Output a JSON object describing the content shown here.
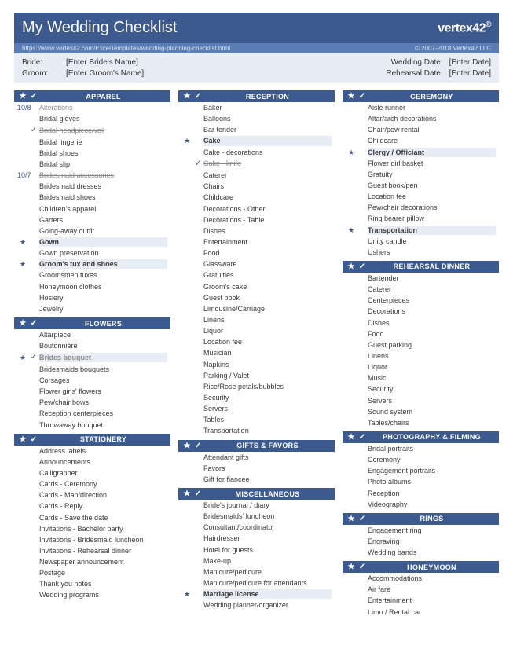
{
  "colors": {
    "primary": "#3c5a8e",
    "secondary": "#5b7db5",
    "highlight": "#e8edf5"
  },
  "header": {
    "title": "My Wedding Checklist",
    "brand": "vertex42",
    "url": "https://www.vertex42.com/ExcelTemplates/wedding-planning-checklist.html",
    "copyright": "© 2007-2018 Vertex42 LLC"
  },
  "info": {
    "bride_label": "Bride:",
    "bride_value": "[Enter Bride's Name]",
    "groom_label": "Groom:",
    "groom_value": "[Enter Groom's Name]",
    "wedding_label": "Wedding Date:",
    "wedding_value": "[Enter Date]",
    "rehearsal_label": "Rehearsal Date:",
    "rehearsal_value": "[Enter Date]"
  },
  "columns": [
    [
      {
        "title": "APPAREL",
        "items": [
          {
            "m1": "10/8",
            "m2": "",
            "t": "Alterations",
            "d": true
          },
          {
            "m1": "",
            "m2": "",
            "t": "Bridal gloves"
          },
          {
            "m1": "",
            "m2": "✓",
            "t": "Bridal headpiece/veil",
            "d": true
          },
          {
            "m1": "",
            "m2": "",
            "t": "Bridal lingerie"
          },
          {
            "m1": "",
            "m2": "",
            "t": "Bridal shoes"
          },
          {
            "m1": "",
            "m2": "",
            "t": "Bridal slip"
          },
          {
            "m1": "10/7",
            "m2": "",
            "t": "Bridesmaid accessories",
            "d": true
          },
          {
            "m1": "",
            "m2": "",
            "t": "Bridesmaid dresses"
          },
          {
            "m1": "",
            "m2": "",
            "t": "Bridesmaid shoes"
          },
          {
            "m1": "",
            "m2": "",
            "t": "Children's apparel"
          },
          {
            "m1": "",
            "m2": "",
            "t": "Garters"
          },
          {
            "m1": "",
            "m2": "",
            "t": "Going-away outfit"
          },
          {
            "m1": "★",
            "m2": "",
            "t": "Gown",
            "s": true
          },
          {
            "m1": "",
            "m2": "",
            "t": "Gown preservation"
          },
          {
            "m1": "★",
            "m2": "",
            "t": "Groom's tux and shoes",
            "s": true
          },
          {
            "m1": "",
            "m2": "",
            "t": "Groomsmen tuxes"
          },
          {
            "m1": "",
            "m2": "",
            "t": "Honeymoon clothes"
          },
          {
            "m1": "",
            "m2": "",
            "t": "Hosiery"
          },
          {
            "m1": "",
            "m2": "",
            "t": "Jewelry"
          }
        ]
      },
      {
        "title": "FLOWERS",
        "items": [
          {
            "m1": "",
            "m2": "",
            "t": "Altarpiece"
          },
          {
            "m1": "",
            "m2": "",
            "t": "Boutonnière"
          },
          {
            "m1": "★",
            "m2": "✓",
            "t": "Brides bouquet",
            "s": true,
            "d": true
          },
          {
            "m1": "",
            "m2": "",
            "t": "Bridesmaids bouquets"
          },
          {
            "m1": "",
            "m2": "",
            "t": "Corsages"
          },
          {
            "m1": "",
            "m2": "",
            "t": "Flower girls' flowers"
          },
          {
            "m1": "",
            "m2": "",
            "t": "Pew/chair bows"
          },
          {
            "m1": "",
            "m2": "",
            "t": "Reception centerpieces"
          },
          {
            "m1": "",
            "m2": "",
            "t": "Throwaway bouquet"
          }
        ]
      },
      {
        "title": "STATIONERY",
        "items": [
          {
            "m1": "",
            "m2": "",
            "t": "Address labels"
          },
          {
            "m1": "",
            "m2": "",
            "t": "Announcements"
          },
          {
            "m1": "",
            "m2": "",
            "t": "Calligrapher"
          },
          {
            "m1": "",
            "m2": "",
            "t": "Cards - Ceremony"
          },
          {
            "m1": "",
            "m2": "",
            "t": "Cards - Map/direction"
          },
          {
            "m1": "",
            "m2": "",
            "t": "Cards - Reply"
          },
          {
            "m1": "",
            "m2": "",
            "t": "Cards - Save the date"
          },
          {
            "m1": "",
            "m2": "",
            "t": "Invitations - Bachelor party"
          },
          {
            "m1": "",
            "m2": "",
            "t": "Invitations - Bridesmaid luncheon"
          },
          {
            "m1": "",
            "m2": "",
            "t": "Invitations - Rehearsal dinner"
          },
          {
            "m1": "",
            "m2": "",
            "t": "Newspaper announcement"
          },
          {
            "m1": "",
            "m2": "",
            "t": "Postage"
          },
          {
            "m1": "",
            "m2": "",
            "t": "Thank you notes"
          },
          {
            "m1": "",
            "m2": "",
            "t": "Wedding programs"
          }
        ]
      }
    ],
    [
      {
        "title": "RECEPTION",
        "items": [
          {
            "m1": "",
            "m2": "",
            "t": "Baker"
          },
          {
            "m1": "",
            "m2": "",
            "t": "Balloons"
          },
          {
            "m1": "",
            "m2": "",
            "t": "Bar tender"
          },
          {
            "m1": "★",
            "m2": "",
            "t": "Cake",
            "s": true
          },
          {
            "m1": "",
            "m2": "",
            "t": "Cake - decorations"
          },
          {
            "m1": "",
            "m2": "✓",
            "t": "Cake - knife",
            "d": true
          },
          {
            "m1": "",
            "m2": "",
            "t": "Caterer"
          },
          {
            "m1": "",
            "m2": "",
            "t": "Chairs"
          },
          {
            "m1": "",
            "m2": "",
            "t": "Childcare"
          },
          {
            "m1": "",
            "m2": "",
            "t": "Decorations - Other"
          },
          {
            "m1": "",
            "m2": "",
            "t": "Decorations - Table"
          },
          {
            "m1": "",
            "m2": "",
            "t": "Dishes"
          },
          {
            "m1": "",
            "m2": "",
            "t": "Entertainment"
          },
          {
            "m1": "",
            "m2": "",
            "t": "Food"
          },
          {
            "m1": "",
            "m2": "",
            "t": "Glassware"
          },
          {
            "m1": "",
            "m2": "",
            "t": "Gratuities"
          },
          {
            "m1": "",
            "m2": "",
            "t": "Groom's cake"
          },
          {
            "m1": "",
            "m2": "",
            "t": "Guest book"
          },
          {
            "m1": "",
            "m2": "",
            "t": "Limousine/Carriage"
          },
          {
            "m1": "",
            "m2": "",
            "t": "Linens"
          },
          {
            "m1": "",
            "m2": "",
            "t": "Liquor"
          },
          {
            "m1": "",
            "m2": "",
            "t": "Location fee"
          },
          {
            "m1": "",
            "m2": "",
            "t": "Musician"
          },
          {
            "m1": "",
            "m2": "",
            "t": "Napkins"
          },
          {
            "m1": "",
            "m2": "",
            "t": "Parking / Valet"
          },
          {
            "m1": "",
            "m2": "",
            "t": "Rice/Rose petals/bubbles"
          },
          {
            "m1": "",
            "m2": "",
            "t": "Security"
          },
          {
            "m1": "",
            "m2": "",
            "t": "Servers"
          },
          {
            "m1": "",
            "m2": "",
            "t": "Tables"
          },
          {
            "m1": "",
            "m2": "",
            "t": "Transportation"
          }
        ]
      },
      {
        "title": "GIFTS & FAVORS",
        "items": [
          {
            "m1": "",
            "m2": "",
            "t": "Attendant gifts"
          },
          {
            "m1": "",
            "m2": "",
            "t": "Favors"
          },
          {
            "m1": "",
            "m2": "",
            "t": "Gift for fiancee"
          }
        ]
      },
      {
        "title": "MISCELLANEOUS",
        "items": [
          {
            "m1": "",
            "m2": "",
            "t": "Bride's journal / diary"
          },
          {
            "m1": "",
            "m2": "",
            "t": "Bridesmaids' luncheon"
          },
          {
            "m1": "",
            "m2": "",
            "t": "Consultant/coordinator"
          },
          {
            "m1": "",
            "m2": "",
            "t": "Hairdresser"
          },
          {
            "m1": "",
            "m2": "",
            "t": "Hotel for guests"
          },
          {
            "m1": "",
            "m2": "",
            "t": "Make-up"
          },
          {
            "m1": "",
            "m2": "",
            "t": "Manicure/pedicure"
          },
          {
            "m1": "",
            "m2": "",
            "t": "Manicure/pedicure for attendants"
          },
          {
            "m1": "★",
            "m2": "",
            "t": "Marriage license",
            "s": true
          },
          {
            "m1": "",
            "m2": "",
            "t": "Wedding planner/organizer"
          }
        ]
      }
    ],
    [
      {
        "title": "CEREMONY",
        "items": [
          {
            "m1": "",
            "m2": "",
            "t": "Aisle runner"
          },
          {
            "m1": "",
            "m2": "",
            "t": "Altar/arch decorations"
          },
          {
            "m1": "",
            "m2": "",
            "t": "Chair/pew rental"
          },
          {
            "m1": "",
            "m2": "",
            "t": "Childcare"
          },
          {
            "m1": "★",
            "m2": "",
            "t": "Clergy / Officiant",
            "s": true
          },
          {
            "m1": "",
            "m2": "",
            "t": "Flower girl basket"
          },
          {
            "m1": "",
            "m2": "",
            "t": "Gratuity"
          },
          {
            "m1": "",
            "m2": "",
            "t": "Guest book/pen"
          },
          {
            "m1": "",
            "m2": "",
            "t": "Location fee"
          },
          {
            "m1": "",
            "m2": "",
            "t": "Pew/chair decorations"
          },
          {
            "m1": "",
            "m2": "",
            "t": "Ring bearer pillow"
          },
          {
            "m1": "★",
            "m2": "",
            "t": "Transportation",
            "s": true
          },
          {
            "m1": "",
            "m2": "",
            "t": "Unity candle"
          },
          {
            "m1": "",
            "m2": "",
            "t": "Ushers"
          }
        ]
      },
      {
        "title": "REHEARSAL DINNER",
        "items": [
          {
            "m1": "",
            "m2": "",
            "t": "Bartender"
          },
          {
            "m1": "",
            "m2": "",
            "t": "Caterer"
          },
          {
            "m1": "",
            "m2": "",
            "t": "Centerpieces"
          },
          {
            "m1": "",
            "m2": "",
            "t": "Decorations"
          },
          {
            "m1": "",
            "m2": "",
            "t": "Dishes"
          },
          {
            "m1": "",
            "m2": "",
            "t": "Food"
          },
          {
            "m1": "",
            "m2": "",
            "t": "Guest parking"
          },
          {
            "m1": "",
            "m2": "",
            "t": "Linens"
          },
          {
            "m1": "",
            "m2": "",
            "t": "Liquor"
          },
          {
            "m1": "",
            "m2": "",
            "t": "Music"
          },
          {
            "m1": "",
            "m2": "",
            "t": "Security"
          },
          {
            "m1": "",
            "m2": "",
            "t": "Servers"
          },
          {
            "m1": "",
            "m2": "",
            "t": "Sound system"
          },
          {
            "m1": "",
            "m2": "",
            "t": "Tables/chairs"
          }
        ]
      },
      {
        "title": "PHOTOGRAPHY & FILMING",
        "items": [
          {
            "m1": "",
            "m2": "",
            "t": "Bridal portraits"
          },
          {
            "m1": "",
            "m2": "",
            "t": "Ceremony"
          },
          {
            "m1": "",
            "m2": "",
            "t": "Engagement portraits"
          },
          {
            "m1": "",
            "m2": "",
            "t": "Photo albums"
          },
          {
            "m1": "",
            "m2": "",
            "t": "Reception"
          },
          {
            "m1": "",
            "m2": "",
            "t": "Videography"
          }
        ]
      },
      {
        "title": "RINGS",
        "items": [
          {
            "m1": "",
            "m2": "",
            "t": "Engagement ring"
          },
          {
            "m1": "",
            "m2": "",
            "t": "Engraving"
          },
          {
            "m1": "",
            "m2": "",
            "t": "Wedding bands"
          }
        ]
      },
      {
        "title": "HONEYMOON",
        "items": [
          {
            "m1": "",
            "m2": "",
            "t": "Accommodations"
          },
          {
            "m1": "",
            "m2": "",
            "t": "Air fare"
          },
          {
            "m1": "",
            "m2": "",
            "t": "Entertainment"
          },
          {
            "m1": "",
            "m2": "",
            "t": "Limo / Rental car"
          }
        ]
      }
    ]
  ]
}
